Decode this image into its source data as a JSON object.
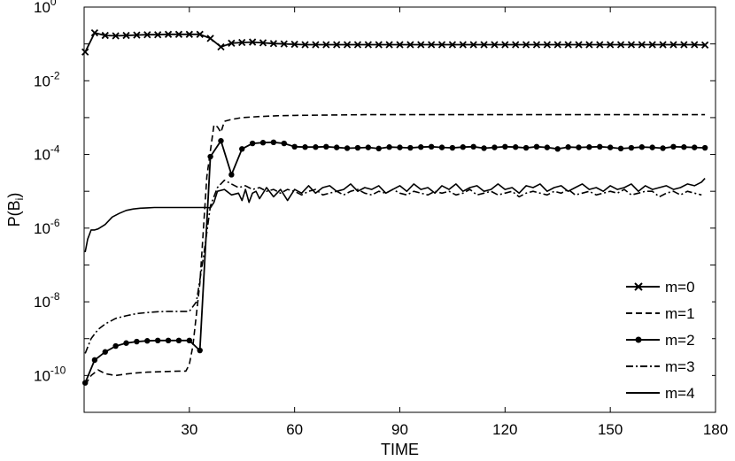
{
  "chart_data": {
    "type": "line",
    "xlabel": "TIME",
    "ylabel_base": "P(B",
    "ylabel_sub": "i",
    "ylabel_end": ")",
    "xlim": [
      0,
      180
    ],
    "ylim_log10": [
      -11,
      0
    ],
    "y_scale": "log",
    "grid": false,
    "legend_position": "bottom-right",
    "x_ticks": [
      {
        "value": 30,
        "label": "30"
      },
      {
        "value": 60,
        "label": "60"
      },
      {
        "value": 90,
        "label": "90"
      },
      {
        "value": 120,
        "label": "120"
      },
      {
        "value": 150,
        "label": "150"
      },
      {
        "value": 180,
        "label": "180"
      }
    ],
    "y_ticks": [
      {
        "exp": 0,
        "base": "10",
        "sup": "0"
      },
      {
        "exp": -2,
        "base": "10",
        "sup": "-2"
      },
      {
        "exp": -4,
        "base": "10",
        "sup": "-4"
      },
      {
        "exp": -6,
        "base": "10",
        "sup": "-6"
      },
      {
        "exp": -8,
        "base": "10",
        "sup": "-8"
      },
      {
        "exp": -10,
        "base": "10",
        "sup": "-10"
      }
    ],
    "series": [
      {
        "name": "m=0",
        "style": "solid",
        "marker": "x",
        "x": [
          0.3,
          3,
          6,
          9,
          12,
          15,
          18,
          21,
          24,
          27,
          30,
          33,
          36,
          39,
          42,
          45,
          48,
          51,
          54,
          57,
          60,
          63,
          66,
          69,
          72,
          75,
          78,
          81,
          84,
          87,
          90,
          93,
          96,
          99,
          102,
          105,
          108,
          111,
          114,
          117,
          120,
          123,
          126,
          129,
          132,
          135,
          138,
          141,
          144,
          147,
          150,
          153,
          156,
          159,
          162,
          165,
          168,
          171,
          174,
          177
        ],
        "log10y": [
          -1.22,
          -0.7,
          -0.77,
          -0.78,
          -0.77,
          -0.76,
          -0.75,
          -0.75,
          -0.74,
          -0.74,
          -0.74,
          -0.74,
          -0.85,
          -1.08,
          -0.98,
          -0.96,
          -0.95,
          -0.97,
          -0.99,
          -1.0,
          -1.01,
          -1.02,
          -1.02,
          -1.02,
          -1.02,
          -1.02,
          -1.02,
          -1.02,
          -1.02,
          -1.02,
          -1.02,
          -1.02,
          -1.02,
          -1.02,
          -1.02,
          -1.02,
          -1.02,
          -1.02,
          -1.02,
          -1.02,
          -1.02,
          -1.02,
          -1.02,
          -1.02,
          -1.02,
          -1.02,
          -1.02,
          -1.02,
          -1.02,
          -1.02,
          -1.02,
          -1.02,
          -1.02,
          -1.02,
          -1.02,
          -1.02,
          -1.02,
          -1.02,
          -1.02,
          -1.03
        ]
      },
      {
        "name": "m=1",
        "style": "dash",
        "marker": "none",
        "x": [
          0.3,
          2,
          4,
          6,
          9,
          12,
          15,
          18,
          21,
          24,
          27,
          29,
          30,
          31,
          33,
          35,
          37,
          38,
          39,
          40,
          42,
          45,
          50,
          55,
          60,
          70,
          80,
          100,
          120,
          140,
          160,
          177
        ],
        "log10y": [
          -10.25,
          -10.0,
          -9.85,
          -9.95,
          -10.0,
          -9.96,
          -9.93,
          -9.91,
          -9.9,
          -9.89,
          -9.88,
          -9.88,
          -9.7,
          -9.2,
          -7.5,
          -4.6,
          -3.2,
          -3.25,
          -3.4,
          -3.1,
          -3.05,
          -3.0,
          -2.97,
          -2.95,
          -2.94,
          -2.93,
          -2.92,
          -2.92,
          -2.92,
          -2.92,
          -2.92,
          -2.92
        ]
      },
      {
        "name": "m=2",
        "style": "solid",
        "marker": "dot",
        "x": [
          0.3,
          3,
          6,
          9,
          12,
          15,
          18,
          21,
          24,
          27,
          30,
          33,
          36,
          39,
          42,
          45,
          48,
          51,
          54,
          57,
          60,
          63,
          66,
          69,
          72,
          75,
          78,
          81,
          84,
          87,
          90,
          93,
          96,
          99,
          102,
          105,
          108,
          111,
          114,
          117,
          120,
          123,
          126,
          129,
          132,
          135,
          138,
          141,
          144,
          147,
          150,
          153,
          156,
          159,
          162,
          165,
          168,
          171,
          174,
          177
        ],
        "log10y": [
          -10.2,
          -9.58,
          -9.36,
          -9.2,
          -9.12,
          -9.08,
          -9.06,
          -9.05,
          -9.05,
          -9.05,
          -9.05,
          -9.32,
          -4.06,
          -3.63,
          -4.55,
          -3.85,
          -3.7,
          -3.68,
          -3.67,
          -3.7,
          -3.79,
          -3.8,
          -3.8,
          -3.79,
          -3.81,
          -3.83,
          -3.82,
          -3.81,
          -3.84,
          -3.8,
          -3.81,
          -3.82,
          -3.8,
          -3.79,
          -3.81,
          -3.82,
          -3.8,
          -3.79,
          -3.83,
          -3.81,
          -3.79,
          -3.8,
          -3.82,
          -3.79,
          -3.81,
          -3.85,
          -3.8,
          -3.81,
          -3.8,
          -3.79,
          -3.81,
          -3.84,
          -3.82,
          -3.8,
          -3.81,
          -3.83,
          -3.79,
          -3.8,
          -3.81,
          -3.82
        ]
      },
      {
        "name": "m=3",
        "style": "dashdot",
        "marker": "none",
        "x": [
          0.3,
          2,
          4,
          6,
          9,
          12,
          15,
          18,
          21,
          24,
          27,
          30,
          32,
          34,
          36,
          38,
          40,
          42,
          44,
          46,
          48,
          50,
          52,
          54,
          56,
          58,
          60,
          62,
          64,
          66,
          68,
          70,
          72,
          74,
          76,
          78,
          80,
          82,
          84,
          86,
          88,
          90,
          92,
          94,
          96,
          98,
          100,
          102,
          104,
          106,
          108,
          110,
          112,
          114,
          116,
          118,
          120,
          122,
          124,
          126,
          128,
          130,
          132,
          134,
          136,
          138,
          140,
          142,
          144,
          146,
          148,
          150,
          152,
          154,
          156,
          158,
          160,
          162,
          164,
          166,
          168,
          170,
          172,
          174,
          176
        ],
        "log10y": [
          -9.4,
          -9.0,
          -8.75,
          -8.6,
          -8.45,
          -8.38,
          -8.32,
          -8.29,
          -8.27,
          -8.26,
          -8.26,
          -8.26,
          -8.0,
          -6.8,
          -5.4,
          -4.9,
          -4.7,
          -4.8,
          -4.9,
          -4.85,
          -4.95,
          -4.9,
          -5.0,
          -4.95,
          -5.05,
          -4.95,
          -5.0,
          -5.1,
          -5.0,
          -4.95,
          -5.1,
          -5.05,
          -5.0,
          -5.1,
          -5.0,
          -4.95,
          -5.05,
          -5.1,
          -5.0,
          -5.05,
          -4.95,
          -5.05,
          -5.1,
          -5.0,
          -5.05,
          -5.1,
          -5.0,
          -5.05,
          -5.0,
          -5.1,
          -5.05,
          -4.95,
          -5.1,
          -5.05,
          -5.0,
          -5.1,
          -5.05,
          -5.0,
          -5.15,
          -5.05,
          -5.0,
          -5.05,
          -5.1,
          -5.0,
          -5.05,
          -4.95,
          -5.1,
          -5.05,
          -5.0,
          -5.1,
          -5.05,
          -5.0,
          -5.05,
          -4.95,
          -5.1,
          -5.05,
          -5.0,
          -5.0,
          -5.15,
          -5.05,
          -5.0,
          -5.1,
          -5.0,
          -5.05,
          -5.1
        ]
      },
      {
        "name": "m=4",
        "style": "solid",
        "marker": "none",
        "x": [
          0.3,
          1,
          2,
          3,
          4,
          6,
          8,
          10,
          12,
          14,
          16,
          18,
          20,
          22,
          24,
          26,
          28,
          30,
          32,
          34,
          35,
          36,
          37,
          38,
          40,
          42,
          44,
          45,
          46,
          47,
          48,
          49,
          50,
          52,
          54,
          56,
          58,
          60,
          62,
          64,
          66,
          68,
          70,
          72,
          74,
          76,
          78,
          80,
          82,
          84,
          86,
          88,
          90,
          92,
          94,
          96,
          98,
          100,
          102,
          104,
          106,
          108,
          110,
          112,
          114,
          116,
          118,
          120,
          122,
          124,
          126,
          128,
          130,
          132,
          134,
          136,
          138,
          140,
          142,
          144,
          146,
          148,
          150,
          152,
          154,
          156,
          158,
          160,
          162,
          164,
          166,
          168,
          170,
          172,
          174,
          176,
          177
        ],
        "log10y": [
          -6.65,
          -6.3,
          -6.05,
          -6.05,
          -6.02,
          -5.9,
          -5.7,
          -5.6,
          -5.52,
          -5.48,
          -5.46,
          -5.45,
          -5.44,
          -5.44,
          -5.44,
          -5.44,
          -5.44,
          -5.44,
          -5.44,
          -5.44,
          -5.44,
          -5.45,
          -5.3,
          -5.0,
          -4.95,
          -5.1,
          -5.05,
          -5.25,
          -4.95,
          -5.3,
          -5.05,
          -5.0,
          -5.2,
          -4.9,
          -5.15,
          -4.95,
          -5.25,
          -4.95,
          -5.05,
          -4.85,
          -5.05,
          -4.9,
          -4.85,
          -5.0,
          -4.95,
          -4.8,
          -5.0,
          -4.9,
          -4.95,
          -4.85,
          -5.05,
          -4.95,
          -4.85,
          -5.0,
          -4.8,
          -4.95,
          -4.9,
          -5.05,
          -4.85,
          -4.95,
          -4.8,
          -5.0,
          -4.9,
          -4.85,
          -5.0,
          -4.95,
          -4.8,
          -4.95,
          -4.9,
          -5.05,
          -4.85,
          -4.9,
          -4.8,
          -5.0,
          -4.9,
          -4.85,
          -5.0,
          -4.9,
          -4.8,
          -4.95,
          -4.9,
          -5.0,
          -4.85,
          -4.95,
          -4.9,
          -4.8,
          -5.0,
          -4.85,
          -4.95,
          -4.9,
          -4.85,
          -4.95,
          -4.9,
          -4.8,
          -4.85,
          -4.75,
          -4.65
        ]
      }
    ]
  }
}
